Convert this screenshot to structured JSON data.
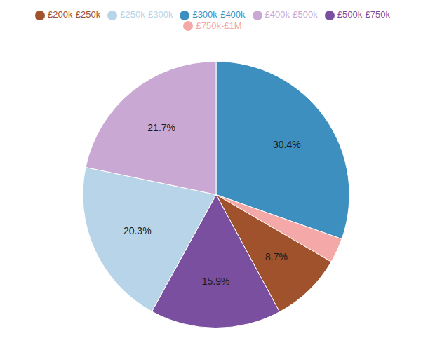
{
  "chart_data": {
    "type": "pie",
    "categories": [
      "£300k-£400k",
      "£750k-£1M",
      "£200k-£250k",
      "£500k-£750k",
      "£250k-£300k",
      "£400k-£500k"
    ],
    "values": [
      30.4,
      3.0,
      8.7,
      15.9,
      20.3,
      21.7
    ],
    "value_labels": [
      "30.4%",
      null,
      "8.7%",
      "15.9%",
      "20.3%",
      "21.7%"
    ],
    "colors": [
      "#3d8fc0",
      "#f4a8a8",
      "#a0522d",
      "#7b4fa0",
      "#b8d4e8",
      "#c9a8d4"
    ],
    "data_labels": true,
    "legend": "top"
  }
}
